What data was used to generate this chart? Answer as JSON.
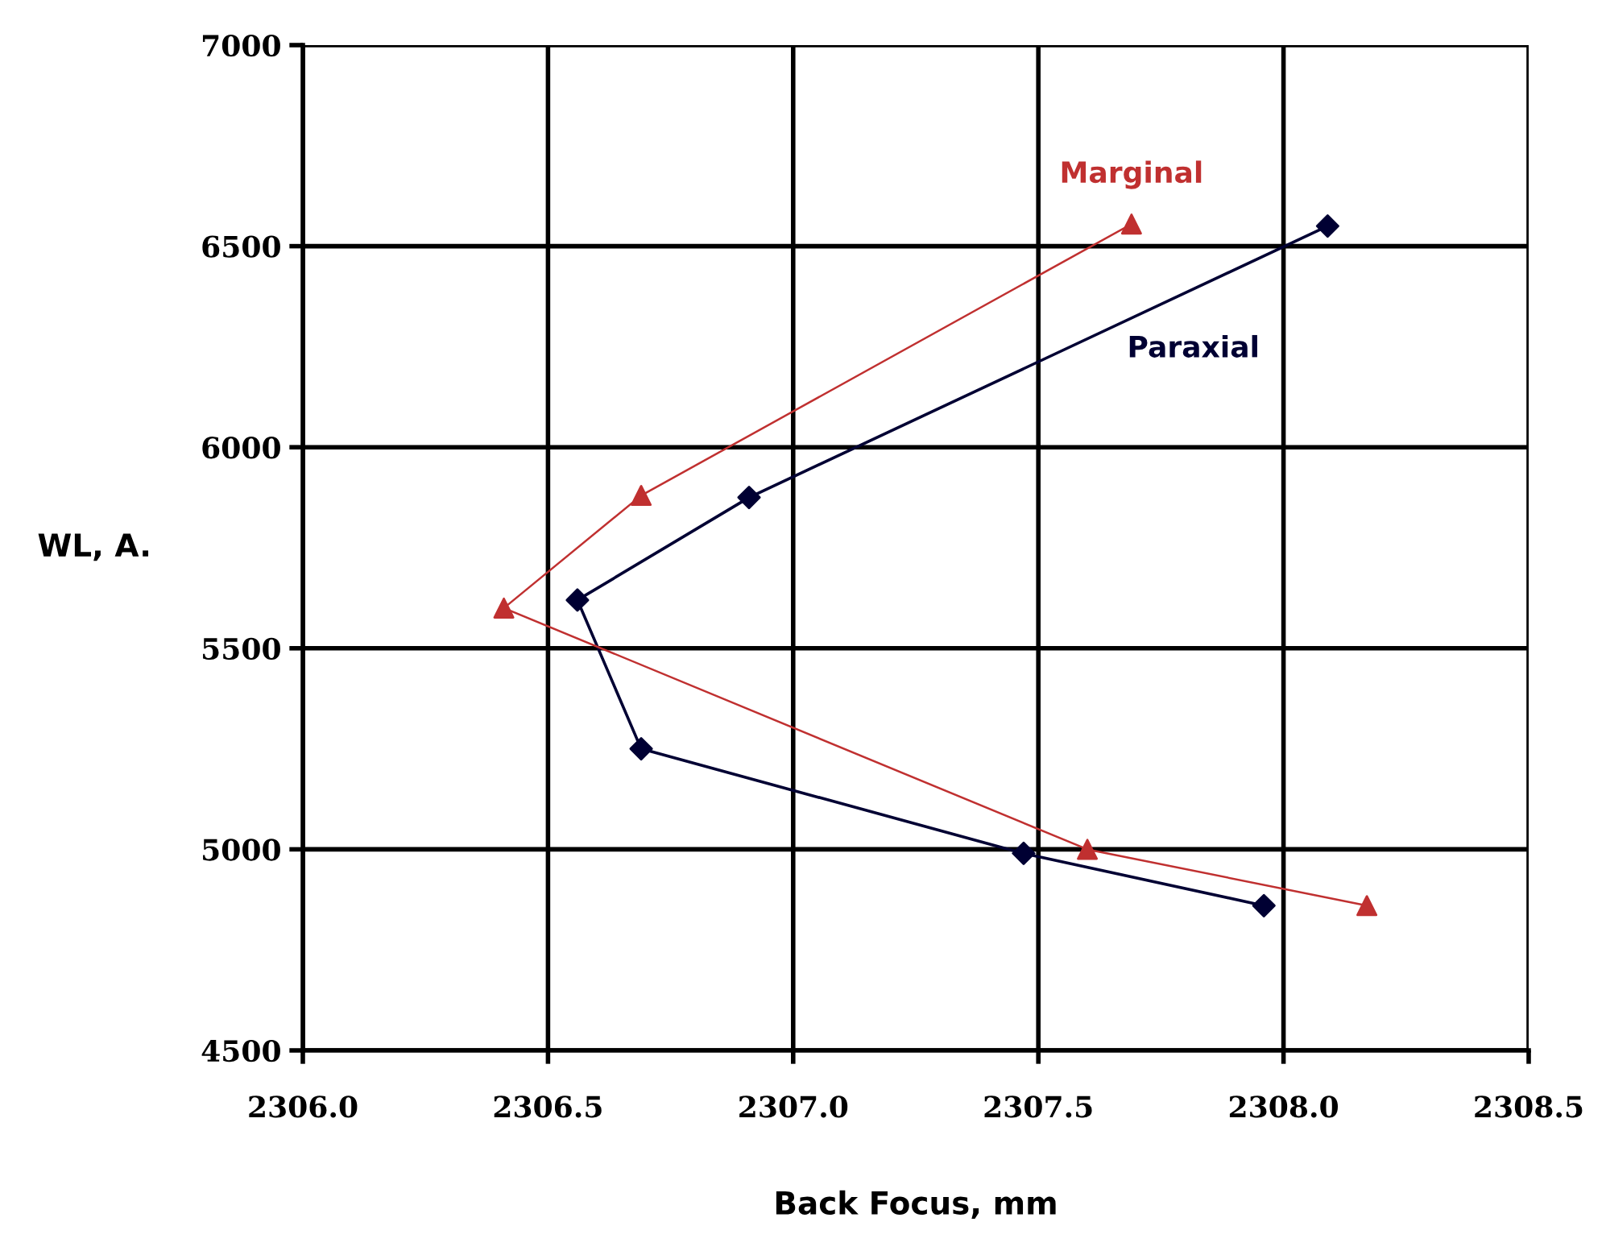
{
  "chart_data": {
    "type": "line",
    "xlabel": "Back Focus, mm",
    "ylabel": "WL, A.",
    "xlim": [
      2306.0,
      2308.5
    ],
    "ylim": [
      4500,
      7000
    ],
    "xticks": [
      {
        "value": 2306.0,
        "label": "2306.0"
      },
      {
        "value": 2306.5,
        "label": "2306.5"
      },
      {
        "value": 2307.0,
        "label": "2307.0"
      },
      {
        "value": 2307.5,
        "label": "2307.5"
      },
      {
        "value": 2308.0,
        "label": "2308.0"
      },
      {
        "value": 2308.5,
        "label": "2308.5"
      }
    ],
    "yticks": [
      4500,
      5000,
      5500,
      6000,
      6500,
      7000
    ],
    "grid": true,
    "legend": false,
    "line_style": "solid",
    "series": [
      {
        "name": "Paraxial",
        "color": "#000033",
        "marker": "diamond",
        "x": [
          2308.09,
          2306.91,
          2306.56,
          2306.69,
          2307.47,
          2307.96
        ],
        "values": [
          6550,
          5875,
          5620,
          5250,
          4990,
          4860
        ]
      },
      {
        "name": "Marginal",
        "color": "#c03030",
        "marker": "triangle",
        "x": [
          2307.69,
          2306.69,
          2306.41,
          2307.6,
          2308.17
        ],
        "values": [
          6555,
          5880,
          5600,
          5000,
          4860
        ]
      }
    ]
  }
}
